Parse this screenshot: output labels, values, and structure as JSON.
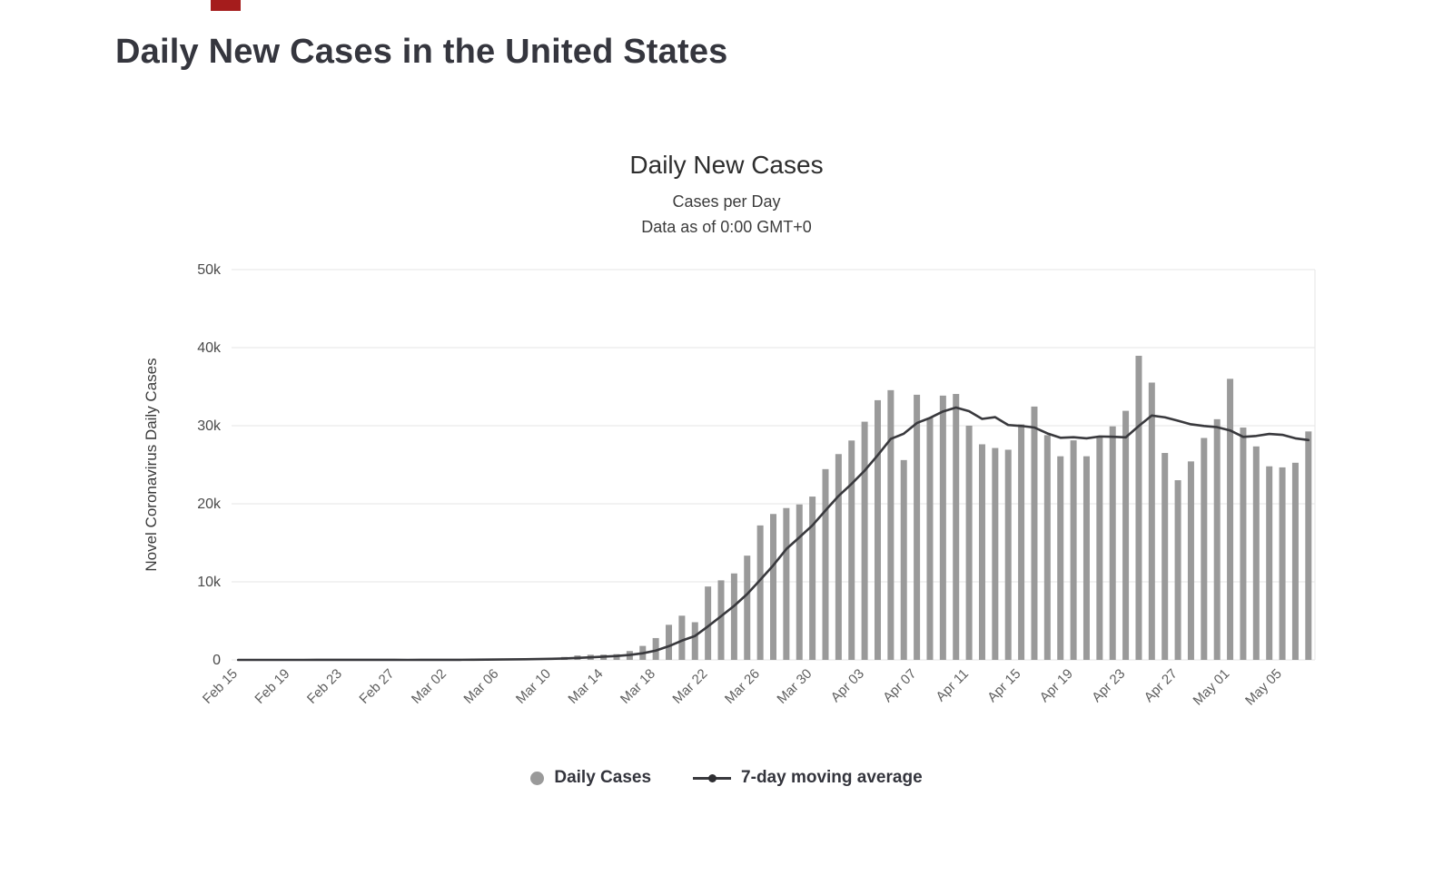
{
  "page": {
    "title": "Daily New Cases in the United States"
  },
  "chart": {
    "title": "Daily New Cases",
    "subtitle_line1": "Cases per Day",
    "subtitle_line2": "Data as of 0:00 GMT+0"
  },
  "chart_data": {
    "type": "bar",
    "title": "Daily New Cases",
    "xlabel": "",
    "ylabel": "Novel Coronavirus Daily Cases",
    "ylim": [
      0,
      50000
    ],
    "y_tick_values": [
      0,
      10000,
      20000,
      30000,
      40000,
      50000
    ],
    "y_ticks": [
      "0",
      "10k",
      "20k",
      "30k",
      "40k",
      "50k"
    ],
    "grid": true,
    "legend_position": "bottom",
    "x_tick_every": 4,
    "x_tick_labels": [
      "Feb 15",
      "Feb 19",
      "Feb 23",
      "Feb 27",
      "Mar 02",
      "Mar 06",
      "Mar 10",
      "Mar 14",
      "Mar 18",
      "Mar 22",
      "Mar 26",
      "Mar 30",
      "Apr 03",
      "Apr 07",
      "Apr 11",
      "Apr 15",
      "Apr 19",
      "Apr 23",
      "Apr 27",
      "May 01",
      "May 05"
    ],
    "categories": [
      "Feb 15",
      "Feb 16",
      "Feb 17",
      "Feb 18",
      "Feb 19",
      "Feb 20",
      "Feb 21",
      "Feb 22",
      "Feb 23",
      "Feb 24",
      "Feb 25",
      "Feb 26",
      "Feb 27",
      "Feb 28",
      "Feb 29",
      "Mar 01",
      "Mar 02",
      "Mar 03",
      "Mar 04",
      "Mar 05",
      "Mar 06",
      "Mar 07",
      "Mar 08",
      "Mar 09",
      "Mar 10",
      "Mar 11",
      "Mar 12",
      "Mar 13",
      "Mar 14",
      "Mar 15",
      "Mar 16",
      "Mar 17",
      "Mar 18",
      "Mar 19",
      "Mar 20",
      "Mar 21",
      "Mar 22",
      "Mar 23",
      "Mar 24",
      "Mar 25",
      "Mar 26",
      "Mar 27",
      "Mar 28",
      "Mar 29",
      "Mar 30",
      "Mar 31",
      "Apr 01",
      "Apr 02",
      "Apr 03",
      "Apr 04",
      "Apr 05",
      "Apr 06",
      "Apr 07",
      "Apr 08",
      "Apr 09",
      "Apr 10",
      "Apr 11",
      "Apr 12",
      "Apr 13",
      "Apr 14",
      "Apr 15",
      "Apr 16",
      "Apr 17",
      "Apr 18",
      "Apr 19",
      "Apr 20",
      "Apr 21",
      "Apr 22",
      "Apr 23",
      "Apr 24",
      "Apr 25",
      "Apr 26",
      "Apr 27",
      "Apr 28",
      "Apr 29",
      "Apr 30",
      "May 01",
      "May 02",
      "May 03",
      "May 04",
      "May 05",
      "May 06",
      "May 07"
    ],
    "series": [
      {
        "name": "Daily Cases",
        "type": "bar",
        "color": "#9a9a9a",
        "values": [
          0,
          0,
          1,
          0,
          0,
          1,
          19,
          0,
          0,
          0,
          1,
          6,
          1,
          4,
          7,
          23,
          20,
          31,
          53,
          80,
          109,
          119,
          123,
          217,
          270,
          374,
          564,
          662,
          678,
          732,
          1133,
          1789,
          2797,
          4494,
          5662,
          4825,
          9400,
          10189,
          11075,
          13355,
          17224,
          18691,
          19452,
          19913,
          20921,
          24437,
          26365,
          28103,
          30513,
          33267,
          34553,
          25598,
          33966,
          31002,
          33855,
          34068,
          30003,
          27620,
          27143,
          26922,
          30170,
          32455,
          28792,
          26084,
          28123,
          26086,
          28621,
          29917,
          31906,
          38958,
          35527,
          26509,
          23017,
          25428,
          28428,
          30833,
          36007,
          29763,
          27348,
          24798,
          24660,
          25253,
          29266
        ]
      },
      {
        "name": "7-day moving average",
        "type": "line",
        "color": "#39393d",
        "window": 7,
        "derivation": "trailing 7-day mean of Daily Cases"
      }
    ],
    "colors": {
      "bar": "#9a9a9a",
      "line": "#39393d",
      "gridline": "#e6e6e6",
      "axis_label": "#4a4a4a",
      "tick_label": "#5f5f5f"
    }
  }
}
